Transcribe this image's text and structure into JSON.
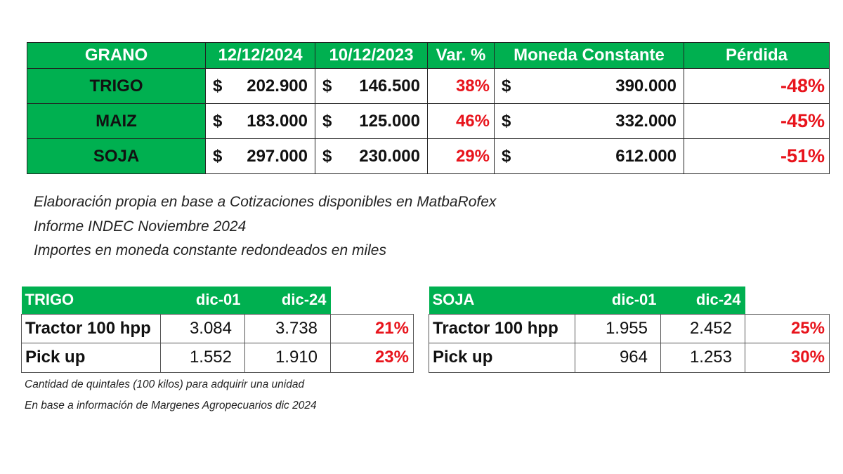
{
  "colors": {
    "header_green": "#00B050",
    "negative_red": "#E8141C"
  },
  "main_table": {
    "headers": [
      "GRANO",
      "12/12/2024",
      "10/12/2023",
      "Var. %",
      "Moneda Constante",
      "Pérdida"
    ],
    "currency": "$",
    "rows": [
      {
        "grano": "TRIGO",
        "p2024": "202.900",
        "p2023": "146.500",
        "var": "38%",
        "constante": "390.000",
        "perdida": "-48%"
      },
      {
        "grano": "MAIZ",
        "p2024": "183.000",
        "p2023": "125.000",
        "var": "46%",
        "constante": "332.000",
        "perdida": "-45%"
      },
      {
        "grano": "SOJA",
        "p2024": "297.000",
        "p2023": "230.000",
        "var": "29%",
        "constante": "612.000",
        "perdida": "-51%"
      }
    ]
  },
  "notes": [
    "Elaboración propia en base a Cotizaciones disponibles en MatbaRofex",
    "Informe INDEC Noviembre 2024",
    "Importes en moneda constante redondeados en miles"
  ],
  "trigo_table": {
    "headers": [
      "TRIGO",
      "dic-01",
      "dic-24"
    ],
    "rows": [
      {
        "item": "Tractor 100 hpp",
        "dic01": "3.084",
        "dic24": "3.738",
        "var": "21%"
      },
      {
        "item": "Pick up",
        "dic01": "1.552",
        "dic24": "1.910",
        "var": "23%"
      }
    ]
  },
  "soja_table": {
    "headers": [
      "SOJA",
      "dic-01",
      "dic-24"
    ],
    "rows": [
      {
        "item": "Tractor 100 hpp",
        "dic01": "1.955",
        "dic24": "2.452",
        "var": "25%"
      },
      {
        "item": "Pick up",
        "dic01": "964",
        "dic24": "1.253",
        "var": "30%"
      }
    ]
  },
  "footnotes": [
    "Cantidad de quintales (100 kilos) para adquirir una unidad",
    "En base a información de Margenes Agropecuarios dic 2024"
  ]
}
